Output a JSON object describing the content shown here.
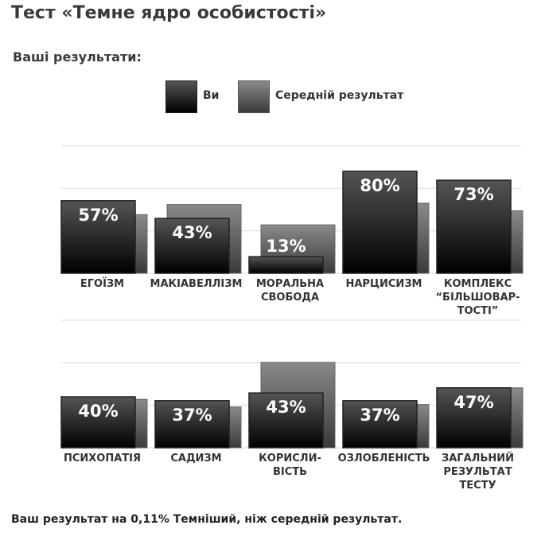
{
  "title": "Тест «Темне ядро особистості»",
  "subtitle": "Ваші результати:",
  "legend": {
    "you": "Ви",
    "average": "Середній результат"
  },
  "colors": {
    "you_top": "#555555",
    "you_bottom": "#000000",
    "avg_top": "#8a8a8a",
    "avg_bottom": "#3a3a3a",
    "grid": "#e6e6e6"
  },
  "footer": "Ваш результат на 0,11% Темніший, ніж середній результат.",
  "chart_data": [
    {
      "type": "bar",
      "ylim": [
        0,
        100
      ],
      "grid": true,
      "categories": [
        [
          "ЕГОЇЗМ"
        ],
        [
          "МАКІАВЕЛЛІЗМ"
        ],
        [
          "МОРАЛЬНА",
          "СВОБОДА"
        ],
        [
          "НАРЦИСИЗМ"
        ],
        [
          "КОМПЛЕКС",
          "“БІЛЬШОВАР-",
          "ТОСТІ”"
        ]
      ],
      "series": [
        {
          "name": "Ви",
          "values": [
            57,
            43,
            13,
            80,
            73
          ],
          "labels": [
            "57%",
            "43%",
            "13%",
            "80%",
            "73%"
          ]
        },
        {
          "name": "Середній результат",
          "values": [
            46,
            54,
            38,
            55,
            49
          ]
        }
      ]
    },
    {
      "type": "bar",
      "ylim": [
        0,
        100
      ],
      "grid": true,
      "categories": [
        [
          "ПСИХОПАТІЯ"
        ],
        [
          "САДИЗМ"
        ],
        [
          "КОРИСЛИ-",
          "ВІСТЬ"
        ],
        [
          "ОЗЛОБЛЕНІСТЬ"
        ],
        [
          "ЗАГАЛЬНИЙ",
          "РЕЗУЛЬТАТ",
          "ТЕСТУ"
        ]
      ],
      "series": [
        {
          "name": "Ви",
          "values": [
            40,
            37,
            43,
            37,
            47
          ],
          "labels": [
            "40%",
            "37%",
            "43%",
            "37%",
            "47%"
          ]
        },
        {
          "name": "Середній результат",
          "values": [
            38,
            32,
            67,
            34,
            47
          ]
        }
      ]
    }
  ]
}
